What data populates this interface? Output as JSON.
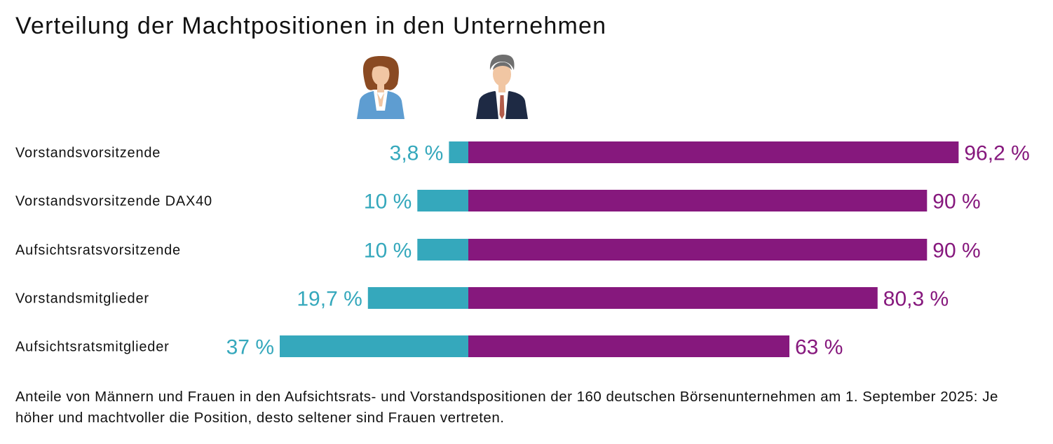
{
  "chart_data": {
    "type": "bar",
    "title": "Verteilung der Machtpositionen in den Unternehmen",
    "orientation": "horizontal-diverging",
    "categories": [
      "Vorstandsvorsitzende",
      "Vorstandsvorsitzende DAX40",
      "Aufsichtsratsvorsitzende",
      "Vorstandsmitglieder",
      "Aufsichtsratsmitglieder"
    ],
    "series": [
      {
        "icon": "woman-icon",
        "color": "#35a8bc",
        "values": [
          3.8,
          10,
          10,
          19.7,
          37
        ],
        "labels": [
          "3,8 %",
          "10 %",
          "10 %",
          "19,7 %",
          "37 %"
        ]
      },
      {
        "icon": "man-icon",
        "color": "#86187d",
        "values": [
          96.2,
          90,
          90,
          80.3,
          63
        ],
        "labels": [
          "96,2 %",
          "90 %",
          "90 %",
          "80,3 %",
          "63 %"
        ]
      }
    ],
    "xlim": [
      0,
      100
    ],
    "grid": false,
    "legend": "icons above bars"
  },
  "caption": "Anteile von Männern und Frauen in den Aufsichtsrats- und Vorstandspositionen der 160 deutschen Börsenunternehmen am 1. September 2025: Je höher und machtvoller die Position, desto seltener sind Frauen vertreten."
}
